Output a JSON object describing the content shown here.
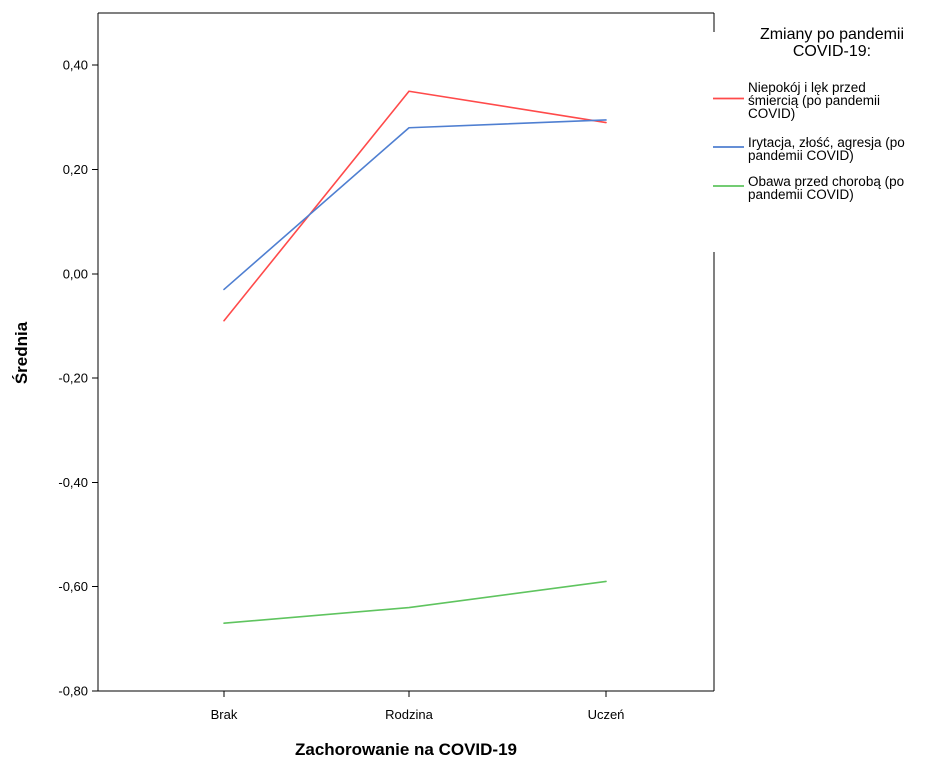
{
  "chart_data": {
    "type": "line",
    "categories": [
      "Brak",
      "Rodzina",
      "Uczeń"
    ],
    "xlabel": "Zachorowanie na COVID-19",
    "ylabel": "Średnia",
    "ylim": [
      -0.8,
      0.5
    ],
    "yticks": [
      {
        "value": -0.8,
        "label": "-0,80"
      },
      {
        "value": -0.6,
        "label": "-0,60"
      },
      {
        "value": -0.4,
        "label": "-0,40"
      },
      {
        "value": -0.2,
        "label": "-0,20"
      },
      {
        "value": 0.0,
        "label": "0,00"
      },
      {
        "value": 0.2,
        "label": "0,20"
      },
      {
        "value": 0.4,
        "label": "0,40"
      }
    ],
    "grid": false,
    "legend": {
      "title": [
        "Zmiany po pandemii",
        "COVID-19:"
      ],
      "placement": "right"
    },
    "series": [
      {
        "name": "Niepokój i lęk przed śmiercią (po pandemii COVID)",
        "legend_lines": [
          "Niepokój i lęk przed",
          "śmiercią (po pandemii",
          "COVID)"
        ],
        "color": "#ff4a4a",
        "values": [
          -0.09,
          0.35,
          0.29
        ]
      },
      {
        "name": "Irytacja, złość, agresja (po pandemii COVID)",
        "legend_lines": [
          "Irytacja, złość, agresja (po",
          "pandemii COVID)"
        ],
        "color": "#4f7fd1",
        "values": [
          -0.03,
          0.28,
          0.295
        ]
      },
      {
        "name": "Obawa przed chorobą (po pandemii COVID)",
        "legend_lines": [
          "Obawa przed chorobą (po",
          "pandemii COVID)"
        ],
        "color": "#5fc45f",
        "values": [
          -0.67,
          -0.64,
          -0.59
        ]
      }
    ]
  }
}
